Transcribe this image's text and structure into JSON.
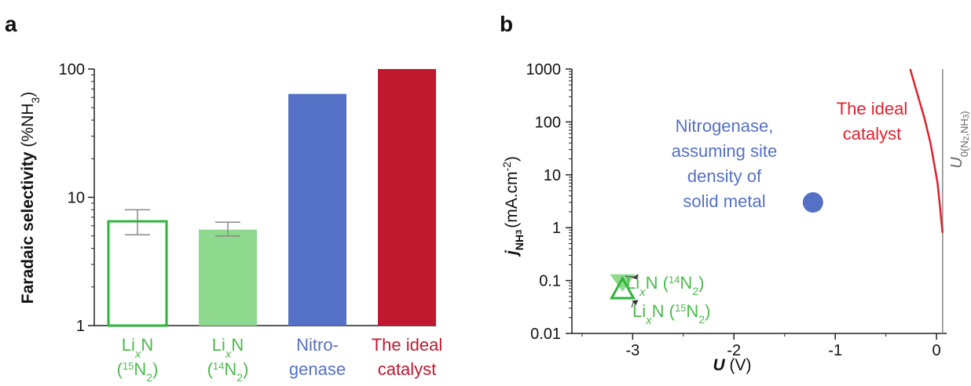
{
  "panels": {
    "a": "a",
    "b": "b"
  },
  "colors": {
    "green_dark": "#2fb43a",
    "green_light": "#8fd98f",
    "green_text": "#4cbb4c",
    "blue": "#5571c6",
    "red": "#c0182f",
    "red_line": "#e0202e",
    "axis": "#333333",
    "vline": "#888888"
  },
  "chart_data": [
    {
      "type": "bar",
      "scale": "log",
      "ylabel_main": "Faradaic selectivity ",
      "ylabel_unit": "(%NH",
      "ylabel_sub": "3",
      "ylabel_close": ")",
      "ylim": [
        1,
        100
      ],
      "yticks": [
        "1",
        "10",
        "100"
      ],
      "categories": [
        {
          "line1": "Li",
          "line1_sub": "x",
          "line1_end": "N",
          "line2": "(",
          "line2_sup": "15",
          "line2_mid": "N",
          "line2_sub": "2",
          "line2_end": ")"
        },
        {
          "line1": "Li",
          "line1_sub": "x",
          "line1_end": "N",
          "line2": "(",
          "line2_sup": "14",
          "line2_mid": "N",
          "line2_sub": "2",
          "line2_end": ")"
        },
        {
          "line1": "Nitro-",
          "line2": "genase"
        },
        {
          "line1": "The ideal",
          "line2": "catalyst"
        }
      ],
      "values": [
        6.5,
        5.6,
        64,
        100
      ],
      "error_low": [
        5.1,
        5.0,
        null,
        null
      ],
      "error_high": [
        8.0,
        6.4,
        null,
        null
      ],
      "styles": [
        "outline-green",
        "light-green",
        "blue",
        "red"
      ]
    },
    {
      "type": "scatter",
      "xscale": "linear",
      "yscale": "log",
      "xlabel": "U",
      "xlabel_unit": " (V)",
      "ylabel_j": "j",
      "ylabel_sub": "NH",
      "ylabel_sub2": "3",
      "ylabel_unit": "(mA.cm",
      "ylabel_sup": "-2",
      "ylabel_close": ")",
      "xlim": [
        -3.6,
        0.1
      ],
      "ylim": [
        0.01,
        1000
      ],
      "xticks": [
        "-3",
        "-2",
        "-1",
        "0"
      ],
      "yticks": [
        "0.01",
        "0.1",
        "1",
        "10",
        "100",
        "1000"
      ],
      "points": [
        {
          "name": "LixN(14N2)",
          "x": -3.1,
          "y": 0.095,
          "marker": "triangle-down"
        },
        {
          "name": "LixN(15N2)",
          "x": -3.1,
          "y": 0.065,
          "marker": "triangle-up"
        },
        {
          "name": "Nitrogenase",
          "x": -1.22,
          "y": 3,
          "marker": "circle"
        }
      ],
      "ideal_curve": {
        "x": [
          0.06,
          0.045,
          0.03,
          0.01,
          -0.02,
          -0.06,
          -0.12,
          -0.2,
          -0.26
        ],
        "y": [
          0.8,
          1.5,
          3,
          7,
          15,
          40,
          120,
          400,
          1000
        ]
      },
      "vline_x": 0.06,
      "annotations": {
        "nitrogenase": [
          "Nitrogenase,",
          "assuming site",
          "density of",
          "solid metal"
        ],
        "ideal": [
          "The ideal",
          "catalyst"
        ],
        "li14": {
          "a": "Li",
          "sub": "x",
          "b": "N (",
          "sup": "14",
          "c": "N",
          "sub2": "2",
          "d": ")"
        },
        "li15": {
          "a": "Li",
          "sub": "x",
          "b": "N (",
          "sup": "15",
          "c": "N",
          "sub2": "2",
          "d": ")"
        },
        "u0": {
          "a": "U",
          "sub": "0(N",
          "sub2": "2",
          "sub3": ",NH",
          "sub4": "3",
          "sub5": ")"
        }
      }
    }
  ]
}
